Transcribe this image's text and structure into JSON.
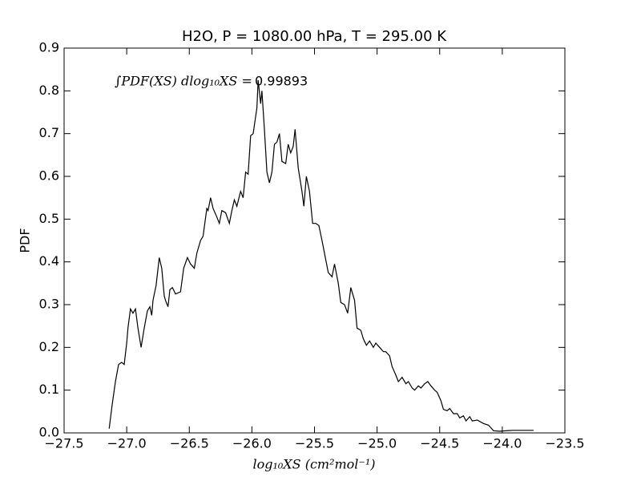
{
  "chart_data": {
    "type": "line",
    "title": "H2O, P = 1080.00 hPa, T = 295.00 K",
    "xlabel": "log₁₀XS (cm²mol⁻¹)",
    "ylabel": "PDF",
    "annotation": {
      "text": "∫PDF(XS) dlog₁₀XS =",
      "value": 0.99893
    },
    "xlim": [
      -27.5,
      -23.5
    ],
    "ylim": [
      0,
      0.9
    ],
    "xticks": [
      {
        "value": -27.5,
        "label": "−27.5"
      },
      {
        "value": -27.0,
        "label": "−27.0"
      },
      {
        "value": -26.5,
        "label": "−26.5"
      },
      {
        "value": -26.0,
        "label": "−26.0"
      },
      {
        "value": -25.5,
        "label": "−25.5"
      },
      {
        "value": -25.0,
        "label": "−25.0"
      },
      {
        "value": -24.5,
        "label": "−24.5"
      },
      {
        "value": -24.0,
        "label": "−24.0"
      },
      {
        "value": -23.5,
        "label": "−23.5"
      }
    ],
    "yticks": [
      {
        "value": 0,
        "label": "0.0"
      },
      0.1,
      0.2,
      0.3,
      0.4,
      0.5,
      0.6,
      0.7,
      0.8,
      0.9
    ],
    "grid": false,
    "x": [
      -27.14,
      -27.116,
      -27.09,
      -27.065,
      -27.04,
      -27.02,
      -27.0,
      -26.99,
      -26.97,
      -26.95,
      -26.93,
      -26.91,
      -26.885,
      -26.86,
      -26.835,
      -26.815,
      -26.8,
      -26.79,
      -26.765,
      -26.74,
      -26.72,
      -26.7,
      -26.69,
      -26.67,
      -26.655,
      -26.635,
      -26.61,
      -26.57,
      -26.545,
      -26.515,
      -26.49,
      -26.46,
      -26.44,
      -26.41,
      -26.39,
      -26.36,
      -26.35,
      -26.33,
      -26.31,
      -26.28,
      -26.26,
      -26.24,
      -26.21,
      -26.18,
      -26.16,
      -26.14,
      -26.12,
      -26.09,
      -26.07,
      -26.05,
      -26.03,
      -26.01,
      -25.99,
      -25.96,
      -25.95,
      -25.93,
      -25.92,
      -25.9,
      -25.88,
      -25.86,
      -25.84,
      -25.82,
      -25.8,
      -25.78,
      -25.76,
      -25.73,
      -25.71,
      -25.69,
      -25.67,
      -25.655,
      -25.63,
      -25.6,
      -25.585,
      -25.565,
      -25.54,
      -25.515,
      -25.49,
      -25.465,
      -25.44,
      -25.41,
      -25.39,
      -25.36,
      -25.34,
      -25.31,
      -25.29,
      -25.26,
      -25.235,
      -25.21,
      -25.18,
      -25.16,
      -25.13,
      -25.11,
      -25.085,
      -25.06,
      -25.03,
      -25.01,
      -24.98,
      -24.95,
      -24.93,
      -24.9,
      -24.88,
      -24.85,
      -24.83,
      -24.8,
      -24.77,
      -24.75,
      -24.72,
      -24.7,
      -24.67,
      -24.65,
      -24.62,
      -24.595,
      -24.57,
      -24.54,
      -24.52,
      -24.49,
      -24.47,
      -24.44,
      -24.42,
      -24.39,
      -24.36,
      -24.34,
      -24.31,
      -24.29,
      -24.26,
      -24.24,
      -24.2,
      -24.15,
      -24.11,
      -24.07,
      -24.02,
      -23.92,
      -23.75
    ],
    "series": [
      {
        "color": "#000000",
        "values": [
          0.01,
          0.066,
          0.12,
          0.16,
          0.165,
          0.16,
          0.21,
          0.245,
          0.29,
          0.28,
          0.29,
          0.245,
          0.2,
          0.245,
          0.285,
          0.295,
          0.275,
          0.31,
          0.345,
          0.41,
          0.385,
          0.32,
          0.31,
          0.295,
          0.335,
          0.34,
          0.325,
          0.33,
          0.385,
          0.41,
          0.395,
          0.385,
          0.42,
          0.45,
          0.46,
          0.525,
          0.52,
          0.55,
          0.525,
          0.505,
          0.49,
          0.52,
          0.515,
          0.49,
          0.52,
          0.545,
          0.53,
          0.565,
          0.55,
          0.61,
          0.605,
          0.695,
          0.7,
          0.76,
          0.825,
          0.77,
          0.8,
          0.71,
          0.61,
          0.585,
          0.61,
          0.675,
          0.68,
          0.7,
          0.635,
          0.63,
          0.675,
          0.655,
          0.67,
          0.71,
          0.62,
          0.565,
          0.53,
          0.6,
          0.565,
          0.49,
          0.49,
          0.485,
          0.45,
          0.405,
          0.375,
          0.365,
          0.395,
          0.35,
          0.305,
          0.3,
          0.28,
          0.34,
          0.31,
          0.245,
          0.24,
          0.22,
          0.205,
          0.215,
          0.2,
          0.21,
          0.2,
          0.19,
          0.19,
          0.18,
          0.155,
          0.135,
          0.12,
          0.13,
          0.115,
          0.12,
          0.105,
          0.1,
          0.11,
          0.105,
          0.115,
          0.12,
          0.11,
          0.1,
          0.095,
          0.075,
          0.055,
          0.052,
          0.057,
          0.045,
          0.045,
          0.035,
          0.04,
          0.028,
          0.038,
          0.028,
          0.03,
          0.022,
          0.018,
          0.005,
          0.004,
          0.006,
          0.006
        ]
      }
    ]
  }
}
